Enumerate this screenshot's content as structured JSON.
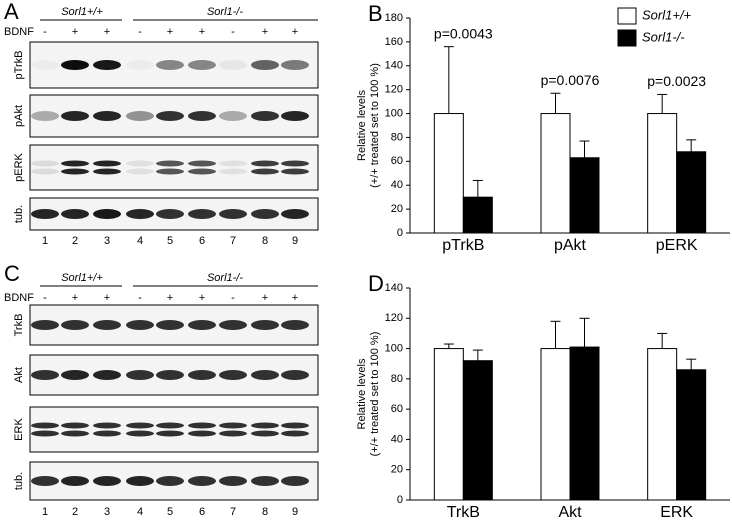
{
  "labels": [
    "A",
    "B",
    "C",
    "D"
  ],
  "blots": [
    {
      "genotypes": [
        "Sorl1+/+",
        "Sorl1-/-"
      ],
      "treatment_label": "BDNF",
      "treatment": [
        "-",
        "+",
        "+",
        "-",
        "+",
        "+",
        "-",
        "+",
        "+"
      ],
      "rows": [
        "pTrkB",
        "pAkt",
        "pERK",
        "tub."
      ],
      "lanes": [
        "1",
        "2",
        "3",
        "4",
        "5",
        "6",
        "7",
        "8",
        "9"
      ]
    },
    {
      "genotypes": [
        "Sorl1+/+",
        "Sorl1-/-"
      ],
      "treatment_label": "BDNF",
      "treatment": [
        "-",
        "+",
        "+",
        "-",
        "+",
        "+",
        "-",
        "+",
        "+"
      ],
      "rows": [
        "TrkB",
        "Akt",
        "ERK",
        "tub."
      ],
      "lanes": [
        "1",
        "2",
        "3",
        "4",
        "5",
        "6",
        "7",
        "8",
        "9"
      ]
    }
  ],
  "chart_data": [
    {
      "type": "bar",
      "ylabel": [
        "Relative levels",
        "(+/+ treated set to 100 %)"
      ],
      "categories": [
        "pTrkB",
        "pAkt",
        "pERK"
      ],
      "series": [
        {
          "name": "Sorl1+/+",
          "color": "#ffffff",
          "values": [
            100,
            100,
            100
          ],
          "errors": [
            56,
            17,
            16
          ]
        },
        {
          "name": "Sorl1-/-",
          "color": "#000000",
          "values": [
            30,
            63,
            68
          ],
          "errors": [
            14,
            14,
            10
          ]
        }
      ],
      "annotations": [
        "p=0.0043",
        "p=0.0076",
        "p=0.0023"
      ],
      "ylim": [
        0,
        180
      ],
      "yticks": [
        0,
        20,
        40,
        60,
        80,
        100,
        120,
        140,
        160,
        180
      ],
      "legend": "top-right"
    },
    {
      "type": "bar",
      "ylabel": [
        "Relative levels",
        "(+/+ treated set to 100 %)"
      ],
      "categories": [
        "TrkB",
        "Akt",
        "ERK"
      ],
      "series": [
        {
          "color": "#ffffff",
          "values": [
            100,
            100,
            100
          ],
          "errors": [
            3,
            18,
            10
          ]
        },
        {
          "color": "#000000",
          "values": [
            92,
            101,
            86
          ],
          "errors": [
            7,
            19,
            7
          ]
        }
      ],
      "ylim": [
        0,
        140
      ],
      "yticks": [
        0,
        20,
        40,
        60,
        80,
        100,
        120,
        140
      ]
    }
  ]
}
